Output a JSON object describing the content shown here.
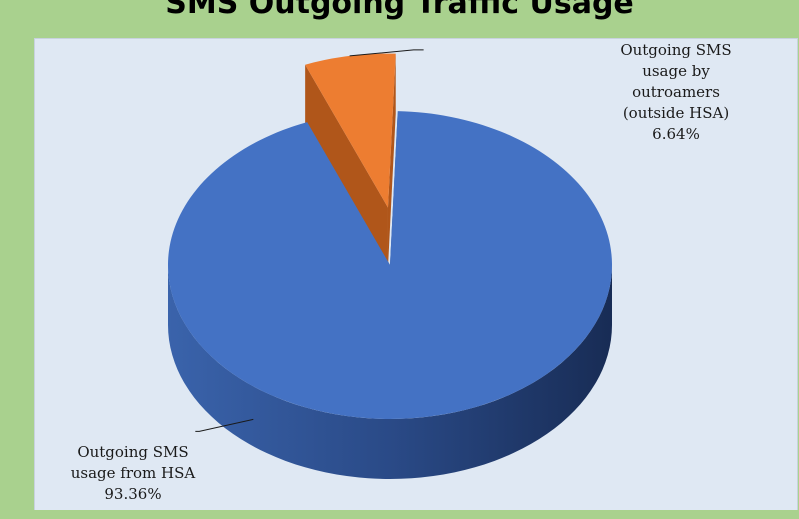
{
  "title": "SMS Outgoing Traffic Usage",
  "colors": {
    "background": "#a9d18e",
    "plot_area": "#dfe8f3",
    "slice_blue": "#4472c4",
    "slice_orange": "#ed7d31"
  },
  "chart_data": {
    "type": "pie",
    "style": "3d-exploded",
    "slices": [
      {
        "name": "Outgoing SMS usage from HSA",
        "value": 93.36,
        "label": "Outgoing SMS\nusage from HSA\n93.36%",
        "color": "#4472c4"
      },
      {
        "name": "Outgoing SMS usage by outroamers (outside HSA)",
        "value": 6.64,
        "label": "Outgoing SMS\nusage by\noutroamers\n(outside HSA)\n6.64%",
        "color": "#ed7d31"
      }
    ],
    "legend": "none",
    "data_labels": "outside with leader lines"
  }
}
